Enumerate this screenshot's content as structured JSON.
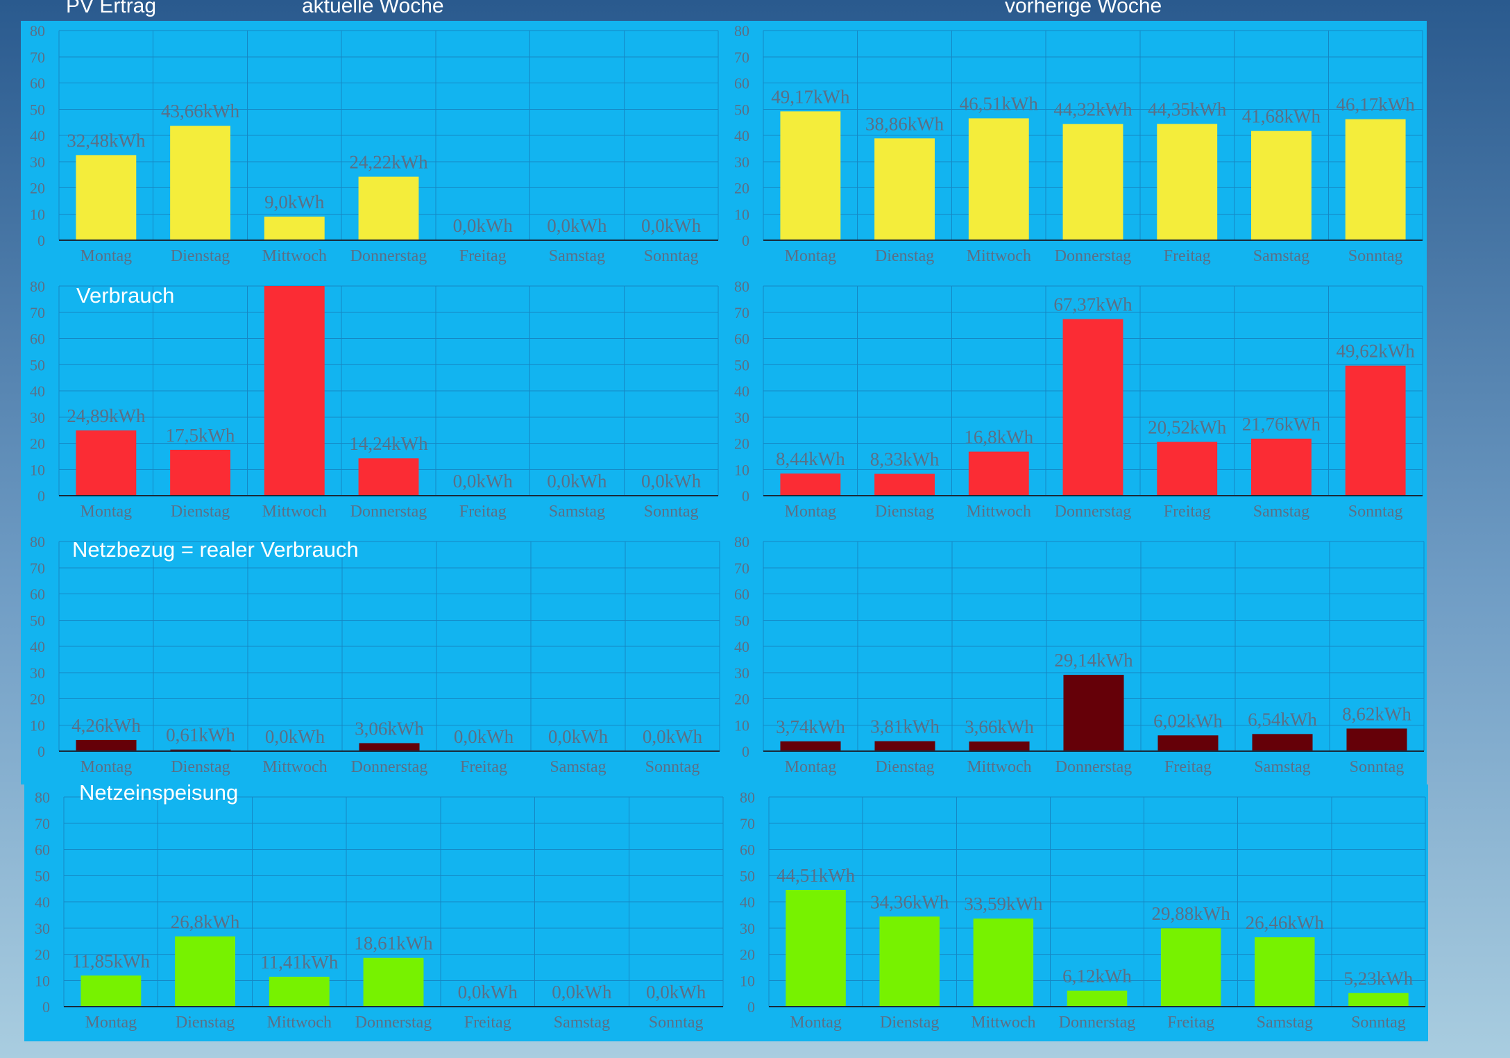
{
  "headers": {
    "pv": "PV Ertrag",
    "current": "aktuelle Woche",
    "previous": "vorherige Woche"
  },
  "overlays": {
    "verbrauch": "Verbrauch",
    "netzbezug": "Netzbezug = realer Verbrauch",
    "netzeinspeisung": "Netzeinspeisung"
  },
  "colors": {
    "panel": "#12b4f0",
    "pv": "#f4ed3b",
    "verbrauch": "#fb2c34",
    "netzbezug": "#650008",
    "netzeinspeisung": "#77f200"
  },
  "chart_data": [
    {
      "type": "bar",
      "categories": [
        "Montag",
        "Dienstag",
        "Mittwoch",
        "Donnerstag",
        "Freitag",
        "Samstag",
        "Sonntag"
      ],
      "values": [
        32.48,
        43.66,
        9.0,
        24.22,
        0.0,
        0.0,
        0.0
      ],
      "data_labels": [
        "32,48kWh",
        "43,66kWh",
        "9,0kWh",
        "24,22kWh",
        "0,0kWh",
        "0,0kWh",
        "0,0kWh"
      ],
      "yticks": [
        "0",
        "10",
        "20",
        "30",
        "40",
        "50",
        "60",
        "70",
        "80"
      ],
      "ylim": [
        0,
        80
      ],
      "grid": true,
      "color": "#f4ed3b"
    },
    {
      "type": "bar",
      "categories": [
        "Montag",
        "Dienstag",
        "Mittwoch",
        "Donnerstag",
        "Freitag",
        "Samstag",
        "Sonntag"
      ],
      "values": [
        49.17,
        38.86,
        46.51,
        44.32,
        44.35,
        41.68,
        46.17
      ],
      "data_labels": [
        "49,17kWh",
        "38,86kWh",
        "46,51kWh",
        "44,32kWh",
        "44,35kWh",
        "41,68kWh",
        "46,17kWh"
      ],
      "yticks": [
        "0",
        "10",
        "20",
        "30",
        "40",
        "50",
        "60",
        "70",
        "80"
      ],
      "ylim": [
        0,
        80
      ],
      "grid": true,
      "color": "#f4ed3b"
    },
    {
      "type": "bar",
      "categories": [
        "Montag",
        "Dienstag",
        "Mittwoch",
        "Donnerstag",
        "Freitag",
        "Samstag",
        "Sonntag"
      ],
      "values": [
        24.89,
        17.5,
        80,
        14.24,
        0.0,
        0.0,
        0.0
      ],
      "data_labels": [
        "24,89kWh",
        "17,5kWh",
        "",
        "14,24kWh",
        "0,0kWh",
        "0,0kWh",
        "0,0kWh"
      ],
      "yticks": [
        "0",
        "10",
        "20",
        "30",
        "40",
        "50",
        "60",
        "70",
        "80"
      ],
      "ylim": [
        0,
        80
      ],
      "grid": true,
      "color": "#fb2c34"
    },
    {
      "type": "bar",
      "categories": [
        "Montag",
        "Dienstag",
        "Mittwoch",
        "Donnerstag",
        "Freitag",
        "Samstag",
        "Sonntag"
      ],
      "values": [
        8.44,
        8.33,
        16.8,
        67.37,
        20.52,
        21.76,
        49.62
      ],
      "data_labels": [
        "8,44kWh",
        "8,33kWh",
        "16,8kWh",
        "67,37kWh",
        "20,52kWh",
        "21,76kWh",
        "49,62kWh"
      ],
      "yticks": [
        "0",
        "10",
        "20",
        "30",
        "40",
        "50",
        "60",
        "70",
        "80"
      ],
      "ylim": [
        0,
        80
      ],
      "grid": true,
      "color": "#fb2c34"
    },
    {
      "type": "bar",
      "categories": [
        "Montag",
        "Dienstag",
        "Mittwoch",
        "Donnerstag",
        "Freitag",
        "Samstag",
        "Sonntag"
      ],
      "values": [
        4.26,
        0.61,
        0.0,
        3.06,
        0.0,
        0.0,
        0.0
      ],
      "data_labels": [
        "4,26kWh",
        "0,61kWh",
        "0,0kWh",
        "3,06kWh",
        "0,0kWh",
        "0,0kWh",
        "0,0kWh"
      ],
      "yticks": [
        "0",
        "10",
        "20",
        "30",
        "40",
        "50",
        "60",
        "70",
        "80"
      ],
      "ylim": [
        0,
        80
      ],
      "grid": true,
      "color": "#650008"
    },
    {
      "type": "bar",
      "categories": [
        "Montag",
        "Dienstag",
        "Mittwoch",
        "Donnerstag",
        "Freitag",
        "Samstag",
        "Sonntag"
      ],
      "values": [
        3.74,
        3.81,
        3.66,
        29.14,
        6.02,
        6.54,
        8.62
      ],
      "data_labels": [
        "3,74kWh",
        "3,81kWh",
        "3,66kWh",
        "29,14kWh",
        "6,02kWh",
        "6,54kWh",
        "8,62kWh"
      ],
      "yticks": [
        "0",
        "10",
        "20",
        "30",
        "40",
        "50",
        "60",
        "70",
        "80"
      ],
      "ylim": [
        0,
        80
      ],
      "grid": true,
      "color": "#650008"
    },
    {
      "type": "bar",
      "categories": [
        "Montag",
        "Dienstag",
        "Mittwoch",
        "Donnerstag",
        "Freitag",
        "Samstag",
        "Sonntag"
      ],
      "values": [
        11.85,
        26.8,
        11.41,
        18.61,
        0.0,
        0.0,
        0.0
      ],
      "data_labels": [
        "11,85kWh",
        "26,8kWh",
        "11,41kWh",
        "18,61kWh",
        "0,0kWh",
        "0,0kWh",
        "0,0kWh"
      ],
      "yticks": [
        "0",
        "10",
        "20",
        "30",
        "40",
        "50",
        "60",
        "70",
        "80"
      ],
      "ylim": [
        0,
        80
      ],
      "grid": true,
      "color": "#77f200"
    },
    {
      "type": "bar",
      "categories": [
        "Montag",
        "Dienstag",
        "Mittwoch",
        "Donnerstag",
        "Freitag",
        "Samstag",
        "Sonntag"
      ],
      "values": [
        44.51,
        34.36,
        33.59,
        6.12,
        29.88,
        26.46,
        5.23
      ],
      "data_labels": [
        "44,51kWh",
        "34,36kWh",
        "33,59kWh",
        "6,12kWh",
        "29,88kWh",
        "26,46kWh",
        "5,23kWh"
      ],
      "yticks": [
        "0",
        "10",
        "20",
        "30",
        "40",
        "50",
        "60",
        "70",
        "80"
      ],
      "ylim": [
        0,
        80
      ],
      "grid": true,
      "color": "#77f200"
    }
  ]
}
